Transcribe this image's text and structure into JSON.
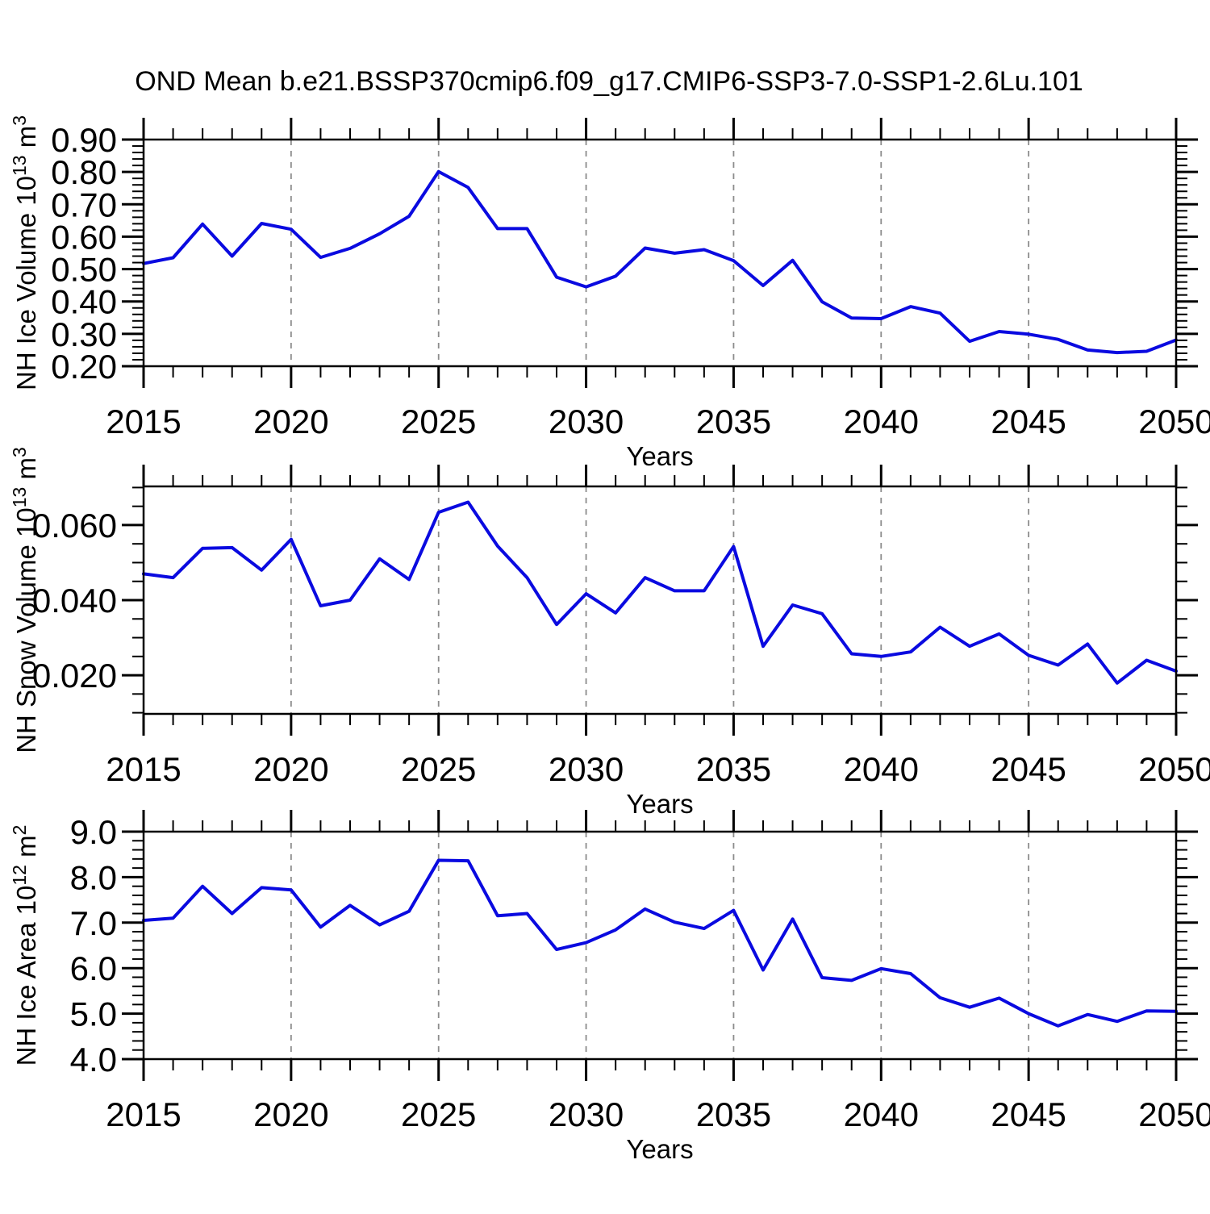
{
  "title": "OND Mean b.e21.BSSP370cmip6.f09_g17.CMIP6-SSP3-7.0-SSP1-2.6Lu.101",
  "colors": {
    "line": "#0a0ae0",
    "grid": "#8c8c8c",
    "axis": "#000000",
    "background": "#ffffff"
  },
  "chart_data": [
    {
      "type": "line",
      "xlabel": "Years",
      "ylabel": "NH Ice Volume 10^13 m^3",
      "ylabel_segments": [
        {
          "t": "NH Ice Volume 10"
        },
        {
          "t": "13",
          "sup": true
        },
        {
          "t": " m"
        },
        {
          "t": "3",
          "sup": true
        }
      ],
      "x_range": [
        2015,
        2050
      ],
      "x_ticks": [
        {
          "v": 2015,
          "label": "2015"
        },
        {
          "v": 2020,
          "label": "2020"
        },
        {
          "v": 2025,
          "label": "2025"
        },
        {
          "v": 2030,
          "label": "2030"
        },
        {
          "v": 2035,
          "label": "2035"
        },
        {
          "v": 2040,
          "label": "2040"
        },
        {
          "v": 2045,
          "label": "2045"
        },
        {
          "v": 2050,
          "label": "2050"
        }
      ],
      "x_minor_step": 1,
      "grid_x": [
        2020,
        2025,
        2030,
        2035,
        2040,
        2045
      ],
      "ylim": [
        0.2,
        0.9
      ],
      "y_ticks": [
        {
          "v": 0.2,
          "label": "0.20"
        },
        {
          "v": 0.3,
          "label": "0.30"
        },
        {
          "v": 0.4,
          "label": "0.40"
        },
        {
          "v": 0.5,
          "label": "0.50"
        },
        {
          "v": 0.6,
          "label": "0.60"
        },
        {
          "v": 0.7,
          "label": "0.70"
        },
        {
          "v": 0.8,
          "label": "0.80"
        },
        {
          "v": 0.9,
          "label": "0.90"
        }
      ],
      "y_major_step": 0.1,
      "y_minor_step": 0.02,
      "x": [
        2015,
        2016,
        2017,
        2018,
        2019,
        2020,
        2021,
        2022,
        2023,
        2024,
        2025,
        2026,
        2027,
        2028,
        2029,
        2030,
        2031,
        2032,
        2033,
        2034,
        2035,
        2036,
        2037,
        2038,
        2039,
        2040,
        2041,
        2042,
        2043,
        2044,
        2045,
        2046,
        2047,
        2048,
        2049,
        2050
      ],
      "values": [
        0.517,
        0.535,
        0.639,
        0.54,
        0.641,
        0.623,
        0.536,
        0.564,
        0.609,
        0.663,
        0.801,
        0.752,
        0.625,
        0.625,
        0.475,
        0.445,
        0.478,
        0.565,
        0.549,
        0.56,
        0.526,
        0.449,
        0.527,
        0.399,
        0.349,
        0.347,
        0.384,
        0.364,
        0.277,
        0.307,
        0.299,
        0.283,
        0.25,
        0.242,
        0.246,
        0.281
      ]
    },
    {
      "type": "line",
      "xlabel": "Years",
      "ylabel": "NH Snow Volume 10^13 m^3",
      "ylabel_segments": [
        {
          "t": "NH Snow Volume 10"
        },
        {
          "t": "13",
          "sup": true
        },
        {
          "t": " m"
        },
        {
          "t": "3",
          "sup": true
        }
      ],
      "x_range": [
        2015,
        2050
      ],
      "x_ticks": [
        {
          "v": 2015,
          "label": "2015"
        },
        {
          "v": 2020,
          "label": "2020"
        },
        {
          "v": 2025,
          "label": "2025"
        },
        {
          "v": 2030,
          "label": "2030"
        },
        {
          "v": 2035,
          "label": "2035"
        },
        {
          "v": 2040,
          "label": "2040"
        },
        {
          "v": 2045,
          "label": "2045"
        },
        {
          "v": 2050,
          "label": "2050"
        }
      ],
      "x_minor_step": 1,
      "grid_x": [
        2020,
        2025,
        2030,
        2035,
        2040,
        2045
      ],
      "ylim": [
        0.0097,
        0.0703
      ],
      "y_ticks": [
        {
          "v": 0.02,
          "label": "0.020"
        },
        {
          "v": 0.04,
          "label": "0.040"
        },
        {
          "v": 0.06,
          "label": "0.060"
        }
      ],
      "y_major_step": 0.02,
      "y_minor_step": 0.005,
      "x": [
        2015,
        2016,
        2017,
        2018,
        2019,
        2020,
        2021,
        2022,
        2023,
        2024,
        2025,
        2026,
        2027,
        2028,
        2029,
        2030,
        2031,
        2032,
        2033,
        2034,
        2035,
        2036,
        2037,
        2038,
        2039,
        2040,
        2041,
        2042,
        2043,
        2044,
        2045,
        2046,
        2047,
        2048,
        2049,
        2050
      ],
      "values": [
        0.047,
        0.046,
        0.0538,
        0.054,
        0.048,
        0.0562,
        0.0385,
        0.04,
        0.051,
        0.0455,
        0.0634,
        0.0661,
        0.0544,
        0.046,
        0.0335,
        0.0417,
        0.0366,
        0.046,
        0.0425,
        0.0425,
        0.0543,
        0.0277,
        0.0387,
        0.0364,
        0.0257,
        0.025,
        0.0262,
        0.0328,
        0.0277,
        0.031,
        0.0253,
        0.0227,
        0.0283,
        0.0179,
        0.024,
        0.0211
      ]
    },
    {
      "type": "line",
      "xlabel": "Years",
      "ylabel": "NH Ice Area 10^12 m^2",
      "ylabel_segments": [
        {
          "t": "NH Ice Area 10"
        },
        {
          "t": "12",
          "sup": true
        },
        {
          "t": " m"
        },
        {
          "t": "2",
          "sup": true
        }
      ],
      "x_range": [
        2015,
        2050
      ],
      "x_ticks": [
        {
          "v": 2015,
          "label": "2015"
        },
        {
          "v": 2020,
          "label": "2020"
        },
        {
          "v": 2025,
          "label": "2025"
        },
        {
          "v": 2030,
          "label": "2030"
        },
        {
          "v": 2035,
          "label": "2035"
        },
        {
          "v": 2040,
          "label": "2040"
        },
        {
          "v": 2045,
          "label": "2045"
        },
        {
          "v": 2050,
          "label": "2050"
        }
      ],
      "x_minor_step": 1,
      "grid_x": [
        2020,
        2025,
        2030,
        2035,
        2040,
        2045
      ],
      "ylim": [
        4.0,
        9.0
      ],
      "y_ticks": [
        {
          "v": 4.0,
          "label": "4.0"
        },
        {
          "v": 5.0,
          "label": "5.0"
        },
        {
          "v": 6.0,
          "label": "6.0"
        },
        {
          "v": 7.0,
          "label": "7.0"
        },
        {
          "v": 8.0,
          "label": "8.0"
        },
        {
          "v": 9.0,
          "label": "9.0"
        }
      ],
      "y_major_step": 1.0,
      "y_minor_step": 0.2,
      "x": [
        2015,
        2016,
        2017,
        2018,
        2019,
        2020,
        2021,
        2022,
        2023,
        2024,
        2025,
        2026,
        2027,
        2028,
        2029,
        2030,
        2031,
        2032,
        2033,
        2034,
        2035,
        2036,
        2037,
        2038,
        2039,
        2040,
        2041,
        2042,
        2043,
        2044,
        2045,
        2046,
        2047,
        2048,
        2049,
        2050
      ],
      "values": [
        7.05,
        7.1,
        7.8,
        7.2,
        7.77,
        7.72,
        6.9,
        7.38,
        6.95,
        7.25,
        8.37,
        8.36,
        7.15,
        7.2,
        6.41,
        6.56,
        6.84,
        7.3,
        7.01,
        6.87,
        7.27,
        5.96,
        7.08,
        5.79,
        5.73,
        5.99,
        5.88,
        5.35,
        5.14,
        5.34,
        5.0,
        4.73,
        4.98,
        4.83,
        5.06,
        5.05
      ]
    }
  ]
}
